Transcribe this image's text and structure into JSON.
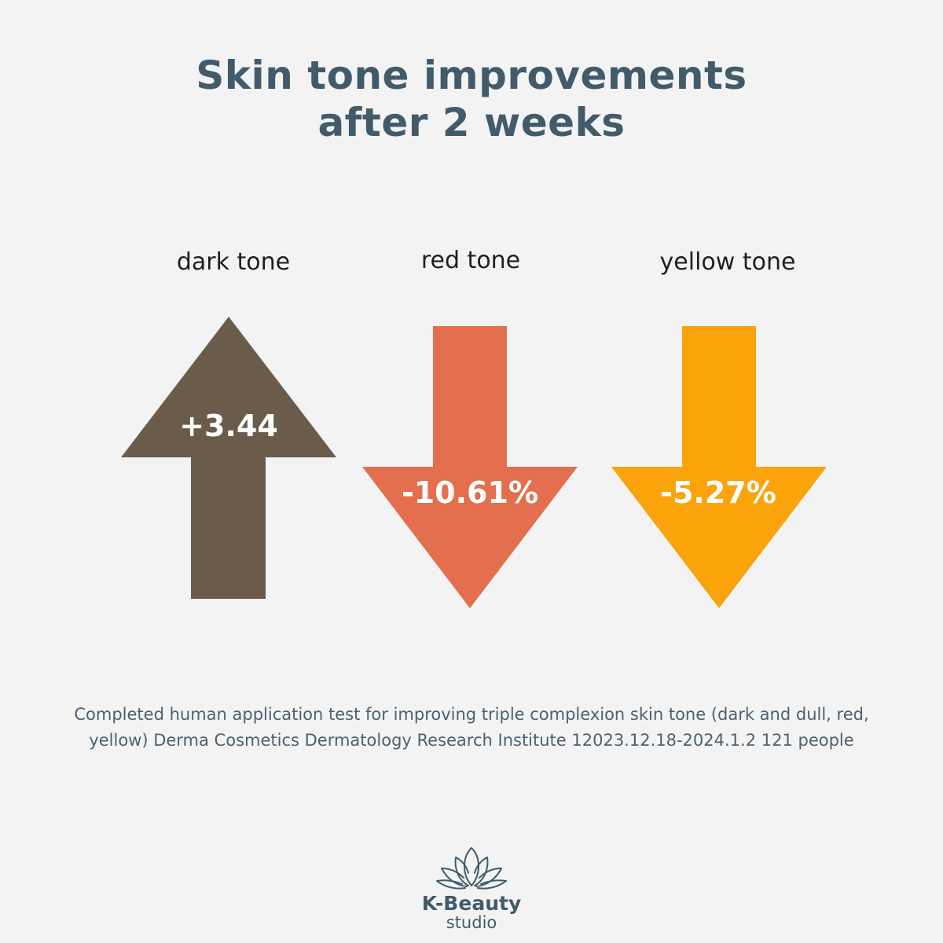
{
  "title": {
    "line1": "Skin tone improvements",
    "line2": "after 2 weeks"
  },
  "metrics": [
    {
      "label": "dark tone",
      "value": "+3.44",
      "direction": "up",
      "color": "#6b5b4b"
    },
    {
      "label": "red tone",
      "value": "-10.61%",
      "direction": "down",
      "color": "#e36f4e"
    },
    {
      "label": "yellow tone",
      "value": "-5.27%",
      "direction": "down",
      "color": "#fba30b"
    }
  ],
  "caption": {
    "line1": "Completed human application test for improving triple complexion skin tone (dark and dull, red,",
    "line2": "yellow) Derma Cosmetics Dermatology Research Institute 12023.12.18-2024.1.2 121 people"
  },
  "logo": {
    "icon": "lotus-icon",
    "name": "K-Beauty",
    "sub": "studio",
    "color": "#425b6b"
  }
}
